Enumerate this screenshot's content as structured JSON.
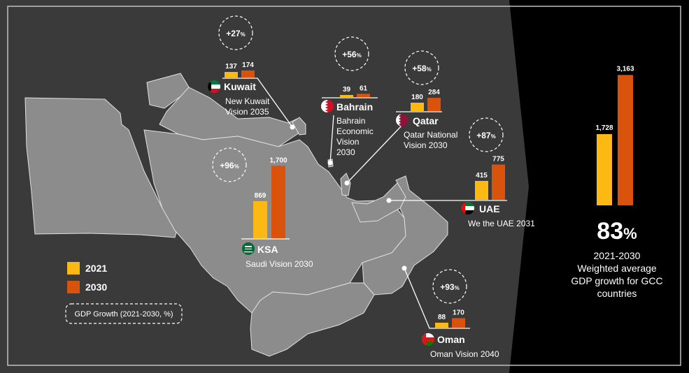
{
  "colors": {
    "y2021": "#FDB913",
    "y2030": "#D9530C",
    "background": "#3a3a3a",
    "land": "#8c8c8c",
    "panel": "#000000"
  },
  "legend": {
    "label_2021": "2021",
    "label_2030": "2030",
    "growth_label": "GDP Growth (2021-2030, %)"
  },
  "chart_data": [
    {
      "type": "bar",
      "categories": [
        "Kuwait",
        "Bahrain",
        "Qatar",
        "UAE",
        "KSA",
        "Oman"
      ],
      "series": [
        {
          "name": "2021",
          "values": [
            137,
            39,
            180,
            415,
            869,
            88
          ]
        },
        {
          "name": "2030",
          "values": [
            174,
            61,
            284,
            775,
            1700,
            170
          ]
        }
      ],
      "growth": [
        "+27",
        "+56",
        "+58",
        "+87",
        "+96",
        "+93"
      ],
      "growth_unit": "%",
      "visions": [
        "New Kuwait Vision 2035",
        "Bahrain Economic Vision 2030",
        "Qatar National Vision 2030",
        "We the UAE 2031",
        "Saudi Vision 2030",
        "Oman Vision 2040"
      ],
      "flags": [
        "kuwait-flag-icon",
        "bahrain-flag-icon",
        "qatar-flag-icon",
        "uae-flag-icon",
        "saudi-flag-icon",
        "oman-flag-icon"
      ]
    },
    {
      "type": "bar",
      "categories": [
        "2021",
        "2030"
      ],
      "values": [
        1728,
        3163
      ]
    }
  ],
  "summary": {
    "big_number": "83",
    "big_unit": "%",
    "lines": [
      "2021-2030",
      "Weighted average",
      "GDP growth for GCC",
      "countries"
    ]
  }
}
